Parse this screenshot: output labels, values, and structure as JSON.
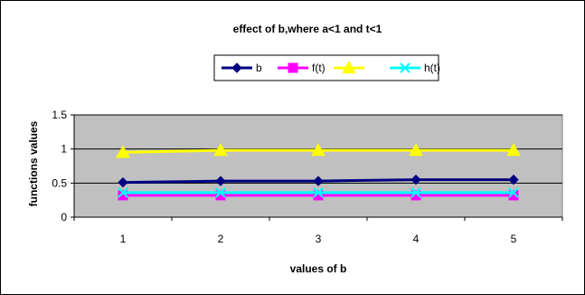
{
  "chart_data": {
    "type": "line",
    "title": "effect of b,where a<1 and t<1",
    "xlabel": "values of b",
    "ylabel": "functions values",
    "categories": [
      "1",
      "2",
      "3",
      "4",
      "5"
    ],
    "ylim": [
      0,
      1.5
    ],
    "yticks": [
      "0",
      "0.5",
      "1",
      "1.5"
    ],
    "ytick_values": [
      0,
      0.5,
      1,
      1.5
    ],
    "grid": true,
    "legend_position": "top",
    "series": [
      {
        "name": "b",
        "values": [
          0.51,
          0.53,
          0.53,
          0.55,
          0.55
        ],
        "color": "#000080",
        "marker": "diamond"
      },
      {
        "name": "f(t)",
        "values": [
          0.32,
          0.32,
          0.32,
          0.32,
          0.32
        ],
        "color": "#FF00FF",
        "marker": "square"
      },
      {
        "name": "",
        "values": [
          0.95,
          0.98,
          0.98,
          0.98,
          0.98
        ],
        "color": "#FFFF00",
        "marker": "triangle"
      },
      {
        "name": "h(t)",
        "values": [
          0.36,
          0.36,
          0.36,
          0.36,
          0.36
        ],
        "color": "#00FFFF",
        "marker": "x"
      }
    ]
  }
}
